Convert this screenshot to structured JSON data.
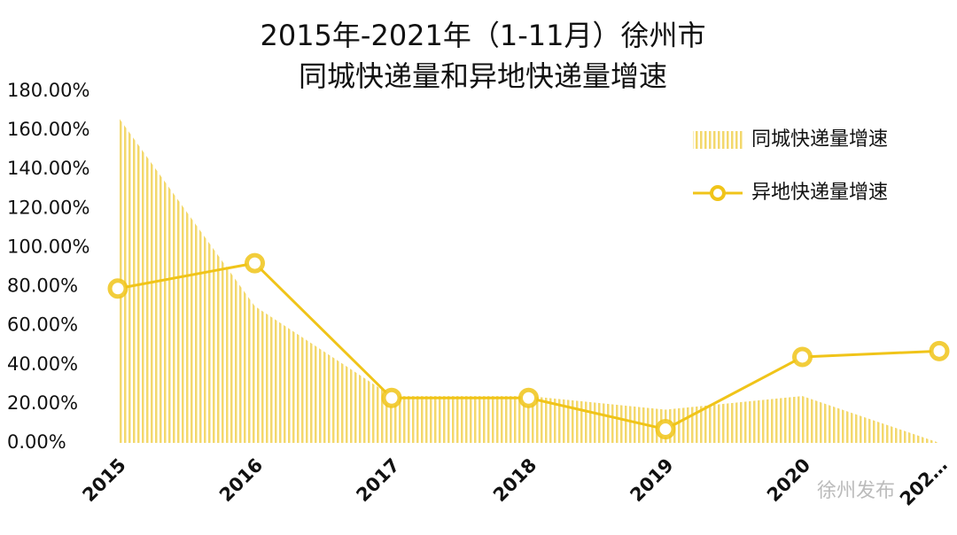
{
  "chart_data": {
    "type": "area-line",
    "title": "2015年-2021年（1-11月）徐州市",
    "subtitle": "同城快递量和异地快递量增速",
    "categories": [
      "2015",
      "2016",
      "2017",
      "2018",
      "2019",
      "2020",
      "202…"
    ],
    "series": [
      {
        "name": "同城快递量增速",
        "type": "area",
        "color": "#f3d86c",
        "values": [
          167,
          70,
          24,
          24,
          17,
          24,
          0
        ]
      },
      {
        "name": "异地快递量增速",
        "type": "line",
        "color": "#f0c419",
        "values": [
          79,
          92,
          23,
          23,
          7,
          44,
          47
        ]
      }
    ],
    "ylim": [
      0,
      180
    ],
    "yticks": [
      {
        "value": 0,
        "label": "0.00%"
      },
      {
        "value": 20,
        "label": "20.00%"
      },
      {
        "value": 40,
        "label": "40.00%"
      },
      {
        "value": 60,
        "label": "60.00%"
      },
      {
        "value": 80,
        "label": "80.00%"
      },
      {
        "value": 100,
        "label": "100.00%"
      },
      {
        "value": 120,
        "label": "120.00%"
      },
      {
        "value": 140,
        "label": "140.00%"
      },
      {
        "value": 160,
        "label": "160.00%"
      },
      {
        "value": 180,
        "label": "180.00%"
      }
    ],
    "legend": "top-right",
    "watermark": "徐州发布"
  }
}
